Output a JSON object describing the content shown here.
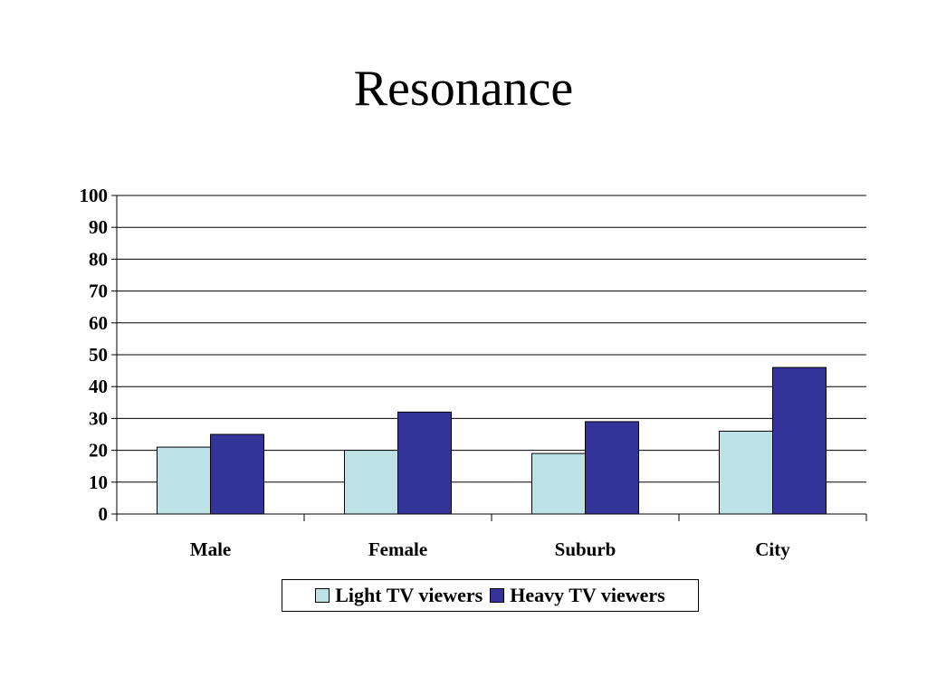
{
  "chart_data": {
    "type": "bar",
    "title": "Resonance",
    "categories": [
      "Male",
      "Female",
      "Suburb",
      "City"
    ],
    "series": [
      {
        "name": "Light TV viewers",
        "values": [
          21,
          20,
          19,
          26
        ],
        "color": "#bce2e6"
      },
      {
        "name": "Heavy TV viewers",
        "values": [
          25,
          32,
          29,
          46
        ],
        "color": "#333399"
      }
    ],
    "ylim": [
      0,
      100
    ],
    "yticks": [
      0,
      10,
      20,
      30,
      40,
      50,
      60,
      70,
      80,
      90,
      100
    ],
    "grid": true,
    "legend": "bottom"
  }
}
